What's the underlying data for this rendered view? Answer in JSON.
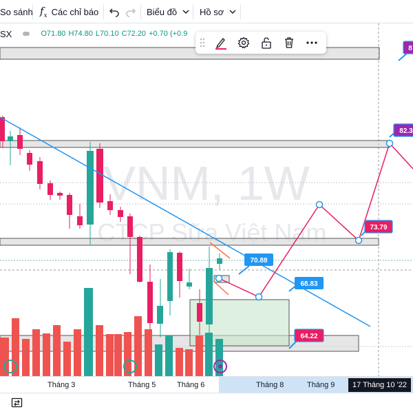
{
  "toolbar": {
    "compare_label": "So sánh",
    "indicators_label": "Các chỉ báo",
    "chart_type_label": "Biểu đồ",
    "profile_label": "Hồ sơ"
  },
  "legend": {
    "exchange": "SX",
    "open": "O71.80",
    "high": "H74.80",
    "low": "L70.10",
    "close": "C72.20",
    "change": "+0.70 (+0.9"
  },
  "watermark": {
    "symbol": "VNM, 1W",
    "company": "CTCP Sữa Việt Nam"
  },
  "price_labels": {
    "p1": "82.3",
    "p2": "73.79",
    "p3": "70.88",
    "p4": "68.83",
    "p5": "64.22",
    "p6": "8"
  },
  "time_axis": {
    "labels": [
      "Tháng 3",
      "Tháng 5",
      "Tháng 6",
      "Tháng 8",
      "Tháng 9"
    ],
    "crosshair": "17 Tháng 10 '22"
  },
  "colors": {
    "up": "#26a69a",
    "down": "#ef5350",
    "candle_down": "#e91e63",
    "drawing_blue": "#2196f3",
    "drawing_pink": "#e91e63",
    "zone_green": "#c8e6c9"
  }
}
